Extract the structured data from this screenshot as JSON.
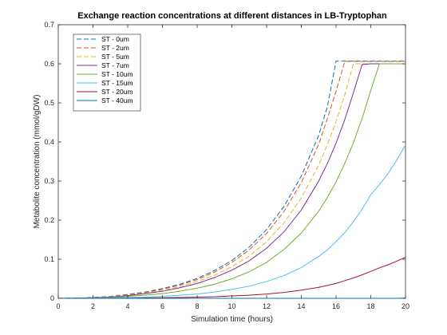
{
  "chart_data": {
    "type": "line",
    "title": "Exchange reaction concentrations at different distances in LB-Tryptophan",
    "xlabel": "Simulation time (hours)",
    "ylabel": "Metabolite concentration (mmol/gDW)",
    "xlim": [
      0,
      20
    ],
    "ylim": [
      0,
      0.7
    ],
    "xticks": [
      0,
      2,
      4,
      6,
      8,
      10,
      12,
      14,
      16,
      18,
      20
    ],
    "yticks": [
      0,
      0.1,
      0.2,
      0.3,
      0.4,
      0.5,
      0.6,
      0.7
    ],
    "grid": false,
    "legend_position": "top-left",
    "x": [
      0,
      1,
      2,
      3,
      4,
      5,
      6,
      7,
      8,
      9,
      10,
      11,
      12,
      13,
      14,
      15,
      15.5,
      16,
      16.5,
      17,
      17.5,
      18,
      18.5,
      19,
      19.5,
      20
    ],
    "series": [
      {
        "name": "ST - 0um",
        "color": "#0072BD",
        "dash": "dashed",
        "values": [
          0,
          0.0005,
          0.002,
          0.005,
          0.01,
          0.016,
          0.025,
          0.036,
          0.051,
          0.071,
          0.097,
          0.131,
          0.176,
          0.235,
          0.313,
          0.417,
          0.49,
          0.607,
          0.607,
          0.607,
          0.607,
          0.607,
          0.607,
          0.607,
          0.607,
          0.607
        ]
      },
      {
        "name": "ST - 2um",
        "color": "#D95319",
        "dash": "dashed",
        "values": [
          0,
          0.0005,
          0.002,
          0.004,
          0.009,
          0.015,
          0.023,
          0.034,
          0.048,
          0.067,
          0.092,
          0.124,
          0.166,
          0.222,
          0.296,
          0.394,
          0.46,
          0.53,
          0.606,
          0.606,
          0.606,
          0.606,
          0.606,
          0.606,
          0.606,
          0.606
        ]
      },
      {
        "name": "ST - 5um",
        "color": "#EDB120",
        "dash": "dashed",
        "values": [
          0,
          0.0004,
          0.0015,
          0.004,
          0.008,
          0.013,
          0.02,
          0.03,
          0.043,
          0.059,
          0.081,
          0.108,
          0.145,
          0.193,
          0.257,
          0.341,
          0.393,
          0.452,
          0.52,
          0.6,
          0.6,
          0.6,
          0.6,
          0.6,
          0.6,
          0.6
        ]
      },
      {
        "name": "ST - 7um",
        "color": "#7E2F8E",
        "dash": "solid",
        "values": [
          0,
          0.0004,
          0.0014,
          0.003,
          0.007,
          0.012,
          0.018,
          0.027,
          0.038,
          0.053,
          0.072,
          0.096,
          0.128,
          0.17,
          0.226,
          0.3,
          0.345,
          0.397,
          0.457,
          0.526,
          0.598,
          0.6,
          0.6,
          0.6,
          0.6,
          0.6
        ]
      },
      {
        "name": "ST - 10um",
        "color": "#77AC30",
        "dash": "solid",
        "values": [
          0,
          0.0003,
          0.001,
          0.002,
          0.005,
          0.008,
          0.012,
          0.018,
          0.026,
          0.036,
          0.05,
          0.068,
          0.092,
          0.125,
          0.167,
          0.223,
          0.258,
          0.298,
          0.345,
          0.398,
          0.46,
          0.532,
          0.6,
          0.6,
          0.6,
          0.6
        ]
      },
      {
        "name": "ST - 15um",
        "color": "#4DBEEE",
        "dash": "solid",
        "values": [
          0,
          0.0001,
          0.0004,
          0.001,
          0.002,
          0.003,
          0.005,
          0.008,
          0.011,
          0.016,
          0.023,
          0.031,
          0.043,
          0.058,
          0.079,
          0.107,
          0.124,
          0.145,
          0.168,
          0.196,
          0.228,
          0.265,
          0.291,
          0.319,
          0.354,
          0.392
        ]
      },
      {
        "name": "ST - 20um",
        "color": "#A2142F",
        "dash": "solid",
        "values": [
          0,
          0,
          0.0001,
          0.0002,
          0.0005,
          0.001,
          0.0015,
          0.002,
          0.003,
          0.004,
          0.006,
          0.008,
          0.011,
          0.015,
          0.021,
          0.028,
          0.033,
          0.038,
          0.045,
          0.052,
          0.06,
          0.069,
          0.078,
          0.086,
          0.095,
          0.105
        ]
      },
      {
        "name": "ST - 40um",
        "color": "#0072BD",
        "dash": "solid",
        "values": [
          0,
          0,
          0,
          0,
          0,
          0,
          0,
          0,
          0,
          0,
          0,
          0,
          0,
          0,
          0,
          0,
          0,
          0,
          0,
          0,
          0,
          0,
          0,
          0,
          0,
          0.0005
        ]
      }
    ]
  }
}
